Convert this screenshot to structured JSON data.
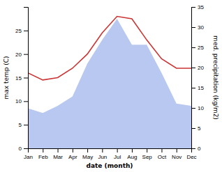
{
  "chart_data": {
    "type": "line",
    "xlabel": "date (month)",
    "ylabel": "max temp (C)",
    "y2label": "med. precipitation (kg/m2)",
    "categories": [
      "Jan",
      "Feb",
      "Mar",
      "Apr",
      "May",
      "Jun",
      "Jul",
      "Aug",
      "Sep",
      "Oct",
      "Nov",
      "Dec"
    ],
    "series": [
      {
        "type": "area",
        "color": "#b8c8f0",
        "values": [
          8.5,
          7.5,
          9.0,
          11.0,
          18.0,
          23.0,
          27.5,
          22.0,
          22.0,
          16.0,
          9.5,
          9.0
        ]
      },
      {
        "type": "line",
        "color": "#cc3333",
        "values": [
          16.0,
          14.5,
          15.0,
          17.0,
          20.0,
          24.5,
          28.0,
          27.5,
          23.0,
          19.0,
          17.0,
          17.0
        ]
      }
    ],
    "ylim": [
      0,
      30
    ],
    "yticks": [
      0,
      5,
      10,
      15,
      20,
      25
    ],
    "y2lim": [
      0,
      35
    ],
    "y2ticks": [
      0,
      5,
      10,
      15,
      20,
      25,
      30,
      35
    ],
    "grid": false
  }
}
